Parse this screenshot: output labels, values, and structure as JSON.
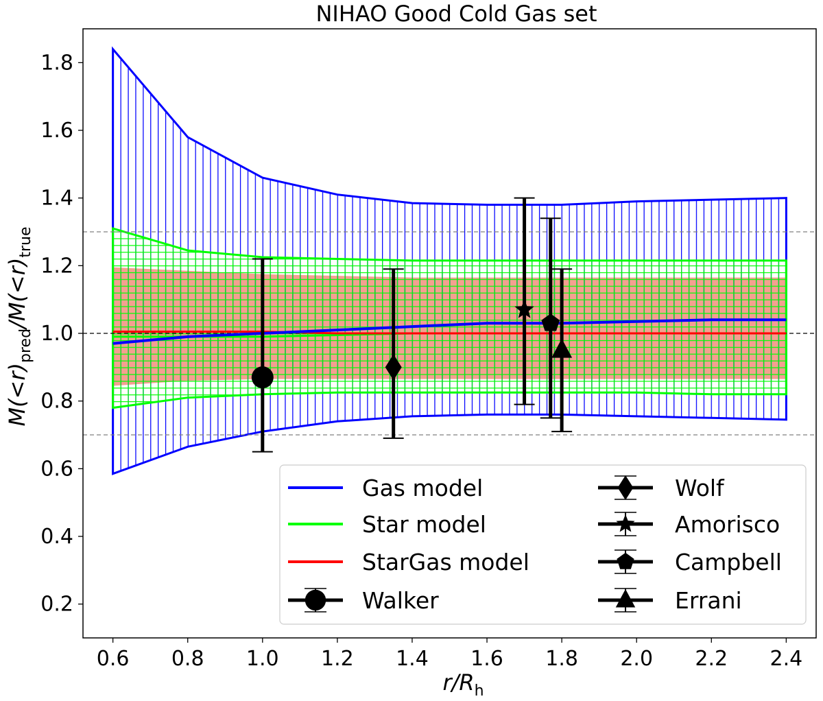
{
  "chart_data": {
    "type": "line",
    "title": "NIHAO Good Cold Gas set",
    "xlabel": {
      "main": "r/R",
      "sub": "h"
    },
    "ylabel": {
      "p1": "M(<r)",
      "sub1": "pred",
      "p2": "/M(<r)",
      "sub2": "true"
    },
    "xlim": [
      0.52,
      2.48
    ],
    "ylim": [
      0.1,
      1.9
    ],
    "xticks": [
      "0.6",
      "0.8",
      "1.0",
      "1.2",
      "1.4",
      "1.6",
      "1.8",
      "2.0",
      "2.2",
      "2.4"
    ],
    "yticks": [
      "0.2",
      "0.4",
      "0.6",
      "0.8",
      "1.0",
      "1.2",
      "1.4",
      "1.6",
      "1.8"
    ],
    "reference_lines": [
      {
        "y": 1.3,
        "style": "dashed",
        "color": "#808080"
      },
      {
        "y": 1.0,
        "style": "dashed",
        "color": "#000000"
      },
      {
        "y": 0.7,
        "style": "dashed",
        "color": "#808080"
      }
    ],
    "x": [
      0.6,
      0.8,
      1.0,
      1.2,
      1.4,
      1.6,
      1.8,
      2.0,
      2.2,
      2.4
    ],
    "series": [
      {
        "name": "Gas model",
        "color": "#0000ff",
        "median": [
          0.97,
          0.99,
          1.0,
          1.01,
          1.02,
          1.03,
          1.03,
          1.035,
          1.04,
          1.04
        ],
        "upper": [
          1.84,
          1.58,
          1.46,
          1.41,
          1.385,
          1.38,
          1.38,
          1.39,
          1.395,
          1.4
        ],
        "lower": [
          0.585,
          0.665,
          0.71,
          0.74,
          0.755,
          0.76,
          0.76,
          0.755,
          0.75,
          0.745
        ],
        "fill": "vertical-hatch"
      },
      {
        "name": "Star model",
        "color": "#00ff00",
        "median": [
          0.99,
          0.99,
          0.99,
          0.995,
          1.0,
          1.0,
          1.0,
          1.0,
          1.0,
          1.0
        ],
        "upper": [
          1.31,
          1.245,
          1.225,
          1.22,
          1.215,
          1.215,
          1.215,
          1.215,
          1.215,
          1.215
        ],
        "lower": [
          0.78,
          0.81,
          0.82,
          0.825,
          0.825,
          0.825,
          0.825,
          0.825,
          0.82,
          0.82
        ],
        "fill": "grid-hatch"
      },
      {
        "name": "StarGas model",
        "color": "#ff0000",
        "band_color": "#f4a090",
        "median": [
          1.005,
          1.005,
          1.005,
          1.0,
          1.0,
          1.0,
          1.0,
          1.0,
          1.0,
          1.0
        ],
        "upper": [
          1.195,
          1.185,
          1.175,
          1.17,
          1.165,
          1.165,
          1.165,
          1.165,
          1.165,
          1.165
        ],
        "lower": [
          0.845,
          0.86,
          0.865,
          0.865,
          0.865,
          0.865,
          0.865,
          0.865,
          0.865,
          0.865
        ],
        "fill": "solid"
      }
    ],
    "estimators": [
      {
        "name": "Walker",
        "x": 1.0,
        "y": 0.87,
        "err_low": 0.65,
        "err_high": 1.22,
        "marker": "circle"
      },
      {
        "name": "Wolf",
        "x": 1.35,
        "y": 0.9,
        "err_low": 0.69,
        "err_high": 1.19,
        "marker": "diamond"
      },
      {
        "name": "Amorisco",
        "x": 1.7,
        "y": 1.07,
        "err_low": 0.79,
        "err_high": 1.4,
        "marker": "star"
      },
      {
        "name": "Campbell",
        "x": 1.77,
        "y": 1.03,
        "err_low": 0.75,
        "err_high": 1.34,
        "marker": "pentagon"
      },
      {
        "name": "Errani",
        "x": 1.8,
        "y": 0.95,
        "err_low": 0.71,
        "err_high": 1.19,
        "marker": "triangle"
      }
    ],
    "legend": {
      "position": "lower-right",
      "columns": [
        [
          "Gas model",
          "Star model",
          "StarGas model",
          "Walker"
        ],
        [
          "Wolf",
          "Amorisco",
          "Campbell",
          "Errani"
        ]
      ]
    },
    "grid": false
  }
}
